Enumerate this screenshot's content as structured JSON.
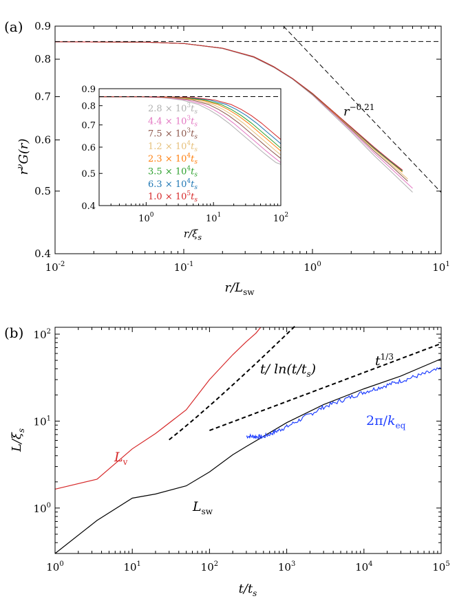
{
  "chart_data": [
    {
      "panel": "(a)",
      "type": "line",
      "xscale": "log",
      "yscale": "log",
      "xlabel": "r/L_sw",
      "ylabel": "r^ν G(r)",
      "xlim": [
        0.01,
        10
      ],
      "ylim": [
        0.4,
        0.9
      ],
      "xticks": [
        {
          "v": 0.01,
          "b": "10",
          "e": "-2"
        },
        {
          "v": 0.1,
          "b": "10",
          "e": "-1"
        },
        {
          "v": 1,
          "b": "10",
          "e": "0"
        },
        {
          "v": 10,
          "b": "10",
          "e": "1"
        }
      ],
      "yticks": [
        {
          "v": 0.4,
          "l": "0.4"
        },
        {
          "v": 0.5,
          "l": "0.5"
        },
        {
          "v": 0.6,
          "l": "0.6"
        },
        {
          "v": 0.7,
          "l": "0.7"
        },
        {
          "v": 0.8,
          "l": "0.8"
        },
        {
          "v": 0.9,
          "l": "0.9"
        }
      ],
      "plateau": 0.852,
      "power_law": {
        "exponent": -0.21,
        "label_base": "r",
        "label_exp": "−0.21",
        "anchor_x": 1,
        "anchor_y": 0.807
      },
      "series": [
        {
          "name": "2.8×10^3 t_s",
          "color": "#b0b0b0",
          "x": [
            0.01,
            0.05,
            0.1,
            0.2,
            0.35,
            0.5,
            0.7,
            1.0,
            1.5,
            2.0,
            3.0,
            4.0,
            6.0
          ],
          "y": [
            0.851,
            0.85,
            0.846,
            0.831,
            0.805,
            0.777,
            0.745,
            0.704,
            0.652,
            0.617,
            0.568,
            0.538,
            0.498
          ]
        },
        {
          "name": "4.4×10^3 t_s",
          "color": "#e377c2",
          "x": [
            0.01,
            0.05,
            0.1,
            0.2,
            0.35,
            0.5,
            0.7,
            1.0,
            1.5,
            2.0,
            3.0,
            4.0,
            6.0
          ],
          "y": [
            0.851,
            0.85,
            0.846,
            0.832,
            0.806,
            0.778,
            0.746,
            0.705,
            0.655,
            0.62,
            0.573,
            0.544,
            0.505
          ]
        },
        {
          "name": "7.5×10^3 t_s",
          "color": "#8c564b",
          "x": [
            0.01,
            0.05,
            0.1,
            0.2,
            0.35,
            0.5,
            0.7,
            1.0,
            1.5,
            2.0,
            3.0,
            4.0,
            5.5
          ],
          "y": [
            0.851,
            0.85,
            0.846,
            0.832,
            0.806,
            0.778,
            0.746,
            0.706,
            0.657,
            0.623,
            0.577,
            0.549,
            0.518
          ]
        },
        {
          "name": "1.2×10^4 t_s",
          "color": "#e6c07b",
          "x": [
            0.01,
            0.05,
            0.1,
            0.2,
            0.35,
            0.5,
            0.7,
            1.0,
            1.5,
            2.0,
            3.0,
            4.0,
            5.5
          ],
          "y": [
            0.851,
            0.85,
            0.846,
            0.832,
            0.807,
            0.779,
            0.747,
            0.707,
            0.658,
            0.625,
            0.58,
            0.552,
            0.522
          ]
        },
        {
          "name": "2.3×10^4 t_s",
          "color": "#ff7f0e",
          "x": [
            0.01,
            0.05,
            0.1,
            0.2,
            0.35,
            0.5,
            0.7,
            1.0,
            1.5,
            2.0,
            3.0,
            4.0,
            5.0
          ],
          "y": [
            0.851,
            0.85,
            0.846,
            0.832,
            0.807,
            0.779,
            0.747,
            0.707,
            0.659,
            0.626,
            0.582,
            0.555,
            0.535
          ]
        },
        {
          "name": "3.5×10^4 t_s",
          "color": "#2ca02c",
          "x": [
            0.01,
            0.05,
            0.1,
            0.2,
            0.35,
            0.5,
            0.7,
            1.0,
            1.5,
            2.0,
            3.0,
            4.0,
            5.0
          ],
          "y": [
            0.851,
            0.85,
            0.846,
            0.832,
            0.807,
            0.779,
            0.747,
            0.707,
            0.66,
            0.627,
            0.583,
            0.556,
            0.537
          ]
        },
        {
          "name": "6.3×10^4 t_s",
          "color": "#1f77b4",
          "x": [
            0.01,
            0.05,
            0.1,
            0.2,
            0.35,
            0.5,
            0.7,
            1.0,
            1.5,
            2.0,
            3.0,
            4.0,
            5.0
          ],
          "y": [
            0.851,
            0.85,
            0.846,
            0.832,
            0.807,
            0.779,
            0.747,
            0.708,
            0.66,
            0.627,
            0.584,
            0.557,
            0.538
          ]
        },
        {
          "name": "1.0×10^5 t_s",
          "color": "#d62728",
          "x": [
            0.01,
            0.05,
            0.1,
            0.2,
            0.35,
            0.5,
            0.7,
            1.0,
            1.5,
            2.0,
            3.0,
            4.0,
            5.0
          ],
          "y": [
            0.851,
            0.85,
            0.846,
            0.832,
            0.807,
            0.779,
            0.747,
            0.708,
            0.66,
            0.628,
            0.585,
            0.558,
            0.539
          ]
        }
      ]
    },
    {
      "panel": "(a) inset",
      "type": "line",
      "xscale": "log",
      "yscale": "log",
      "xlabel": "r/ξ_s",
      "xlim": [
        0.2,
        100
      ],
      "ylim": [
        0.4,
        0.9
      ],
      "xticks": [
        {
          "v": 1,
          "b": "10",
          "e": "0"
        },
        {
          "v": 10,
          "b": "10",
          "e": "1"
        },
        {
          "v": 100,
          "b": "10",
          "e": "2"
        }
      ],
      "yticks": [
        {
          "v": 0.4,
          "l": "0.4"
        },
        {
          "v": 0.5,
          "l": "0.5"
        },
        {
          "v": 0.6,
          "l": "0.6"
        },
        {
          "v": 0.7,
          "l": "0.7"
        },
        {
          "v": 0.8,
          "l": "0.8"
        },
        {
          "v": 0.9,
          "l": "0.9"
        }
      ],
      "plateau": 0.852,
      "note": "x for each curve = (r/L_sw) × L_sw/ξ_s",
      "series": [
        {
          "name": "2.8×10^3 t_s",
          "color": "#b0b0b0",
          "Lsw": 17,
          "m1": "2.8",
          "m2": "3"
        },
        {
          "name": "4.4×10^3 t_s",
          "color": "#e377c2",
          "Lsw": 20,
          "m1": "4.4",
          "m2": "3"
        },
        {
          "name": "7.5×10^3 t_s",
          "color": "#8c564b",
          "Lsw": 24,
          "m1": "7.5",
          "m2": "3"
        },
        {
          "name": "1.2×10^4 t_s",
          "color": "#e6c07b",
          "Lsw": 28,
          "m1": "1.2",
          "m2": "4"
        },
        {
          "name": "2.3×10^4 t_s",
          "color": "#ff7f0e",
          "Lsw": 33,
          "m1": "2.3",
          "m2": "4"
        },
        {
          "name": "3.5×10^4 t_s",
          "color": "#2ca02c",
          "Lsw": 37,
          "m1": "3.5",
          "m2": "4"
        },
        {
          "name": "6.3×10^4 t_s",
          "color": "#1f77b4",
          "Lsw": 44,
          "m1": "6.3",
          "m2": "4"
        },
        {
          "name": "1.0×10^5 t_s",
          "color": "#d62728",
          "Lsw": 52,
          "m1": "1.0",
          "m2": "5"
        }
      ]
    },
    {
      "panel": "(b)",
      "type": "line",
      "xscale": "log",
      "yscale": "log",
      "xlabel": "t/t_s",
      "ylabel": "L/ξ_s",
      "xlim": [
        1,
        100000
      ],
      "ylim": [
        0.3,
        120
      ],
      "xticks": [
        {
          "v": 1,
          "b": "10",
          "e": "0"
        },
        {
          "v": 10,
          "b": "10",
          "e": "1"
        },
        {
          "v": 100,
          "b": "10",
          "e": "2"
        },
        {
          "v": 1000,
          "b": "10",
          "e": "3"
        },
        {
          "v": 10000,
          "b": "10",
          "e": "4"
        },
        {
          "v": 100000,
          "b": "10",
          "e": "5"
        }
      ],
      "yticks": [
        {
          "v": 1,
          "b": "10",
          "e": "0"
        },
        {
          "v": 10,
          "b": "10",
          "e": "1"
        },
        {
          "v": 100,
          "b": "10",
          "e": "2"
        }
      ],
      "series": [
        {
          "name": "L_v",
          "color": "#d62728",
          "x": [
            1,
            3.5,
            10,
            20,
            50,
            100,
            200,
            300,
            400,
            460
          ],
          "y": [
            1.65,
            2.15,
            4.8,
            7.2,
            13.5,
            30,
            58,
            82,
            103,
            120
          ]
        },
        {
          "name": "L_sw",
          "color": "#000000",
          "x": [
            1,
            3.5,
            10,
            20,
            50,
            100,
            200,
            300,
            1000,
            3000,
            10000,
            30000,
            100000
          ],
          "y": [
            0.3,
            0.72,
            1.3,
            1.45,
            1.8,
            2.6,
            4.1,
            5.1,
            9.6,
            15.5,
            23.5,
            33,
            52
          ]
        },
        {
          "name": "2π/k_eq",
          "color": "#1f3fff",
          "noisy": true,
          "x": [
            300,
            500,
            1000,
            3000,
            10000,
            30000,
            100000
          ],
          "y": [
            6.7,
            6.6,
            8.6,
            14.5,
            21.5,
            29,
            40
          ]
        }
      ],
      "reference_lines": [
        {
          "name": "t^{1/3}",
          "from": 100,
          "to": 100000,
          "y0": 7.8
        },
        {
          "name": "t/ln(t/t_s)",
          "from": 30,
          "to": 1300,
          "y0": 6.1
        }
      ],
      "labels": {
        "Lv_main": "L",
        "Lv_sub": "v",
        "Lsw_main": "L",
        "Lsw_sub": "sw",
        "keq_pre": "2π/",
        "keq_main": "k",
        "keq_sub": "eq",
        "t13_base": "t",
        "t13_exp": "1/3",
        "tln": "t/ ln(t/t",
        "tln_sub": "s",
        "tln_close": ")"
      }
    }
  ],
  "text": {
    "panel_a_tag": "(a)",
    "panel_b_tag": "(b)",
    "ylabel_a_r": "r",
    "ylabel_a_nu": "ν",
    "ylabel_a_rest": "G(r)",
    "xlabel_a_r": "r/L",
    "xlabel_a_sub": "sw",
    "inset_xlabel": "r/ξ",
    "inset_xlabel_sub": "s",
    "legend_times": "×",
    "legend_ten": "10",
    "legend_t": "t",
    "legend_t_sub": "s",
    "ylabel_b": "L/ξ",
    "ylabel_b_sub": "s",
    "xlabel_b": "t/t",
    "xlabel_b_sub": "s"
  }
}
